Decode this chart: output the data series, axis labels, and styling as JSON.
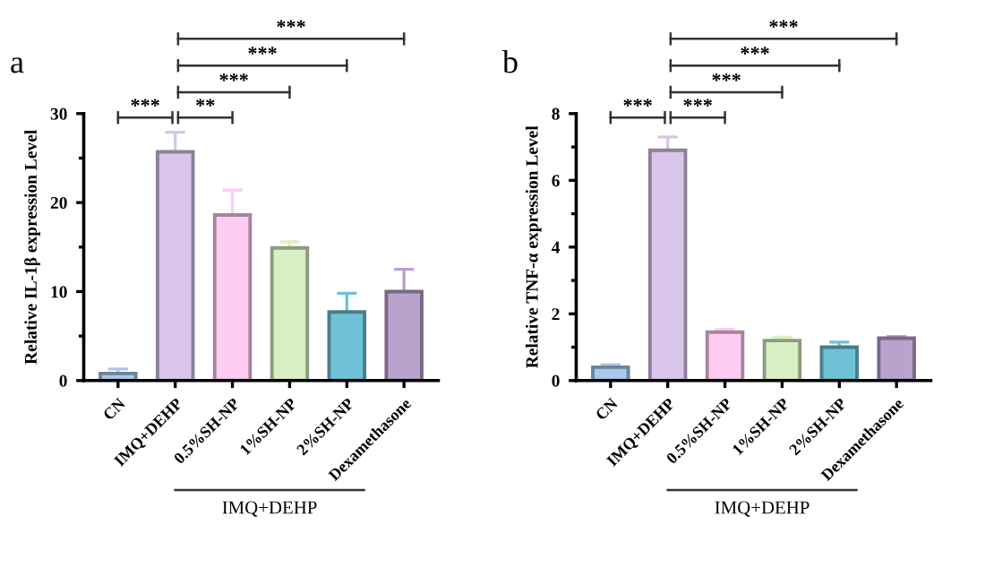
{
  "chart_data": [
    {
      "type": "bar",
      "title": "a",
      "ylabel": "Relative IL-1β expression Level",
      "categories": [
        "CN",
        "IMQ+DEHP",
        "0.5%SH-NP",
        "1%SH-NP",
        "2%SH-NP",
        "Dexamethasone"
      ],
      "values": [
        0.8,
        25.7,
        18.6,
        14.9,
        7.7,
        10.0
      ],
      "errors": [
        0.5,
        2.2,
        2.8,
        0.7,
        2.1,
        2.5
      ],
      "colors": [
        "#a9c8ea",
        "#d9c6ea",
        "#ffccf2",
        "#d9efc4",
        "#6fc2d6",
        "#b9a2cc"
      ],
      "ylim": [
        0,
        30
      ],
      "yticks": [
        0,
        {
          "value": 5,
          "label": null
        },
        10,
        {
          "value": 15,
          "label": null
        },
        20,
        {
          "value": 25,
          "label": null
        },
        30
      ],
      "annotations": [
        "***",
        "**",
        "***",
        "***",
        "***",
        "IMQ+DEHP"
      ],
      "grid": false,
      "legend": false
    },
    {
      "type": "bar",
      "title": "b",
      "ylabel": "Relative TNF-α expression Level",
      "categories": [
        "CN",
        "IMQ+DEHP",
        "0.5%SH-NP",
        "1%SH-NP",
        "2%SH-NP",
        "Dexamethasone"
      ],
      "values": [
        0.4,
        6.9,
        1.45,
        1.2,
        1.0,
        1.27
      ],
      "errors": [
        0.07,
        0.4,
        0.08,
        0.1,
        0.15,
        0.05
      ],
      "colors": [
        "#a9c8ea",
        "#d9c6ea",
        "#ffccf2",
        "#d9efc4",
        "#6fc2d6",
        "#b9a2cc"
      ],
      "ylim": [
        0,
        8
      ],
      "yticks": [
        0,
        {
          "value": 1,
          "label": null
        },
        2,
        {
          "value": 3,
          "label": null
        },
        4,
        {
          "value": 5,
          "label": null
        },
        6,
        {
          "value": 7,
          "label": null
        },
        8
      ],
      "annotations": [
        "***",
        "***",
        "***",
        "***",
        "***",
        "IMQ+DEHP"
      ],
      "grid": false,
      "legend": false
    }
  ]
}
